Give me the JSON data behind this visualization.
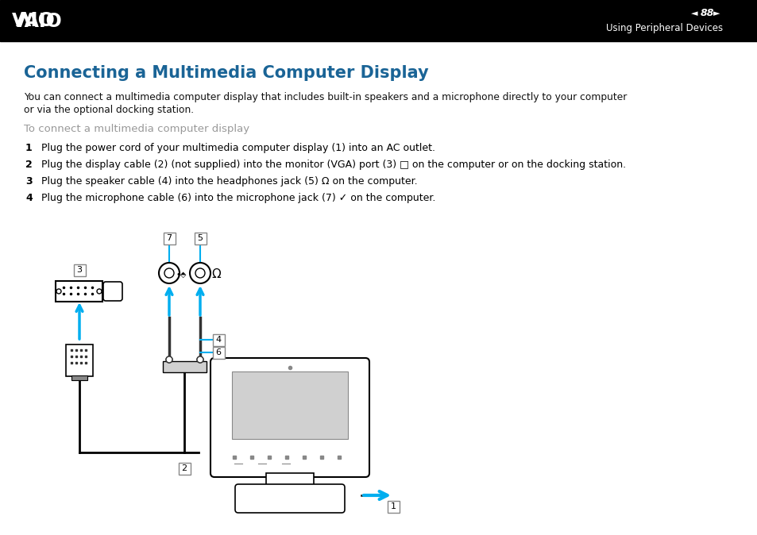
{
  "title": "Connecting a Multimedia Computer Display",
  "subtitle_line1": "You can connect a multimedia computer display that includes built-in speakers and a microphone directly to your computer",
  "subtitle_line2": "or via the optional docking station.",
  "subheading": "To connect a multimedia computer display",
  "step1_num": "1",
  "step1_txt": "Plug the power cord of your multimedia computer display (1) into an AC outlet.",
  "step2_num": "2",
  "step2_txt": "Plug the display cable (2) (not supplied) into the monitor (VGA) port (3) □ on the computer or on the docking station.",
  "step3_num": "3",
  "step3_txt": "Plug the speaker cable (4) into the headphones jack (5) Ω on the computer.",
  "step4_num": "4",
  "step4_txt": "Plug the microphone cable (6) into the microphone jack (7) ✓ on the computer.",
  "header_bg": "#000000",
  "header_text_color": "#ffffff",
  "title_color": "#1a6496",
  "subtitle_color": "#111111",
  "subheading_color": "#999999",
  "step_color": "#111111",
  "cyan_color": "#00aeef",
  "page_number": "88",
  "section_title": "Using Peripheral Devices",
  "bg_color": "#ffffff",
  "black": "#000000",
  "dark_gray": "#333333",
  "light_gray": "#d0d0d0",
  "mid_gray": "#888888"
}
